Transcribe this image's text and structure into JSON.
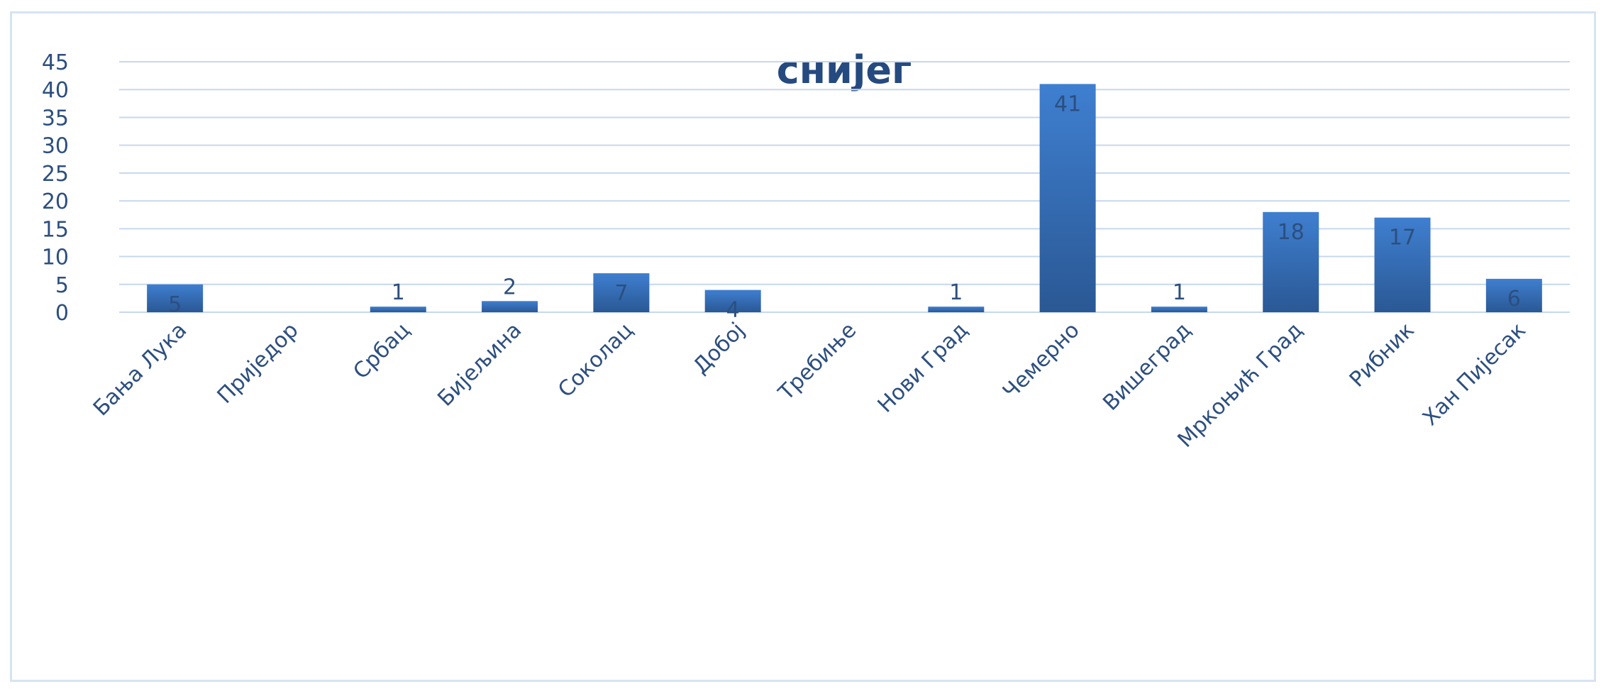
{
  "chart_data": {
    "type": "bar",
    "title": "снијег",
    "xlabel": "",
    "ylabel": "",
    "ylim": [
      0,
      45
    ],
    "yticks": [
      0,
      5,
      10,
      15,
      20,
      25,
      30,
      35,
      40,
      45
    ],
    "grid": true,
    "legend": "none",
    "categories": [
      "Бања Лука",
      "Приједор",
      "Србац",
      "Бијељина",
      "Соколац",
      "Добој",
      "Требиње",
      "Нови Град",
      "Чемерно",
      "Вишеград",
      "Мркоњић Град",
      "Рибник",
      "Хан Пијесак"
    ],
    "values": [
      5,
      0,
      1,
      2,
      7,
      4,
      0,
      1,
      41,
      1,
      18,
      17,
      6
    ],
    "data_labels": [
      "5",
      "",
      "1",
      "2",
      "7",
      "4",
      "",
      "1",
      "41",
      "1",
      "18",
      "17",
      "6"
    ],
    "colors": {
      "bar_top": "#3f7fd0",
      "bar_bottom": "#2a5894",
      "grid": "#c6d8ee",
      "text": "#2d4f7f",
      "title": "#254a80",
      "label_outside": "#2d4f7f",
      "label_inside": "#2b4f80"
    }
  }
}
